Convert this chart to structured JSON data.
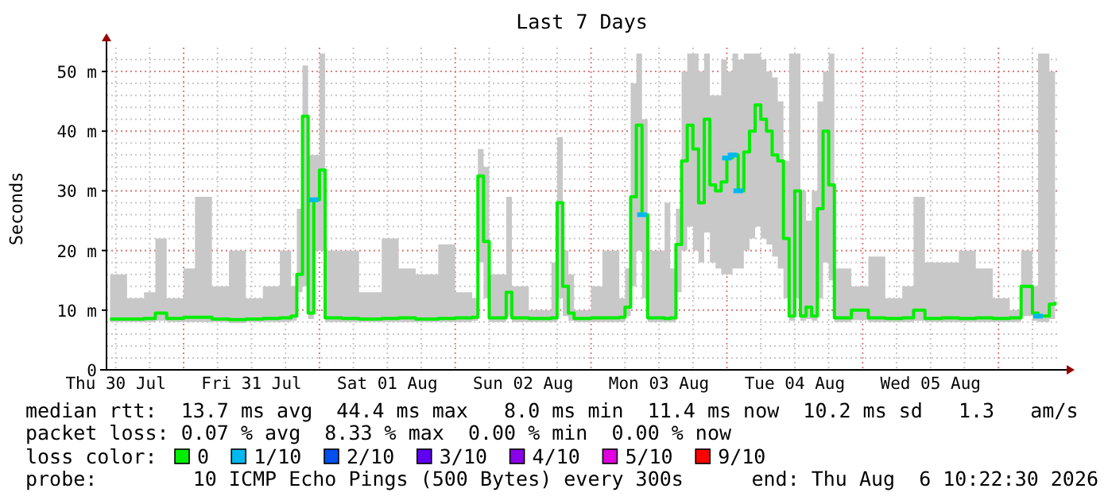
{
  "chart_data": {
    "type": "step",
    "title": "Last 7 Days",
    "ylabel": "Seconds",
    "legend_title": "loss color:",
    "legend": "bottom",
    "grid": true,
    "line_style": "solid",
    "xlim": [
      "2026-07-30T10:22",
      "2026-08-06T10:22"
    ],
    "xticks": [
      {
        "value": "2026-07-30T12:00",
        "label": "Thu 30 Jul"
      },
      {
        "value": "2026-07-31T12:00",
        "label": "Fri 31 Jul"
      },
      {
        "value": "2026-08-01T12:00",
        "label": "Sat 01 Aug"
      },
      {
        "value": "2026-08-02T12:00",
        "label": "Sun 02 Aug"
      },
      {
        "value": "2026-08-03T12:00",
        "label": "Mon 03 Aug"
      },
      {
        "value": "2026-08-04T12:00",
        "label": "Tue 04 Aug"
      },
      {
        "value": "2026-08-05T12:00",
        "label": "Wed 05 Aug"
      }
    ],
    "ylim": [
      0,
      54
    ],
    "yticks": [
      0,
      {
        "value": 10,
        "label": "10 m"
      },
      {
        "value": 20,
        "label": "20 m"
      },
      {
        "value": 30,
        "label": "30 m"
      },
      {
        "value": 40,
        "label": "40 m"
      },
      {
        "value": 50,
        "label": "50 m"
      }
    ],
    "x": [
      "2026-07-30T11:00",
      "2026-07-30T14:00",
      "2026-07-30T17:00",
      "2026-07-30T19:00",
      "2026-07-30T21:00",
      "2026-07-31T00:00",
      "2026-07-31T02:00",
      "2026-07-31T05:00",
      "2026-07-31T08:00",
      "2026-07-31T11:00",
      "2026-07-31T14:00",
      "2026-07-31T17:00",
      "2026-07-31T19:00",
      "2026-07-31T20:00",
      "2026-07-31T21:00",
      "2026-07-31T22:00",
      "2026-07-31T23:00",
      "2026-08-01T00:00",
      "2026-08-01T01:00",
      "2026-08-01T04:00",
      "2026-08-01T07:00",
      "2026-08-01T11:00",
      "2026-08-01T14:00",
      "2026-08-01T17:00",
      "2026-08-01T21:00",
      "2026-08-02T00:00",
      "2026-08-02T03:00",
      "2026-08-02T04:00",
      "2026-08-02T05:00",
      "2026-08-02T06:00",
      "2026-08-02T09:00",
      "2026-08-02T10:00",
      "2026-08-02T13:00",
      "2026-08-02T17:00",
      "2026-08-02T18:00",
      "2026-08-02T19:00",
      "2026-08-02T20:00",
      "2026-08-02T21:00",
      "2026-08-03T00:00",
      "2026-08-03T02:00",
      "2026-08-03T05:00",
      "2026-08-03T06:00",
      "2026-08-03T07:00",
      "2026-08-03T08:00",
      "2026-08-03T09:00",
      "2026-08-03T10:00",
      "2026-08-03T13:00",
      "2026-08-03T14:00",
      "2026-08-03T15:00",
      "2026-08-03T16:00",
      "2026-08-03T17:00",
      "2026-08-03T18:00",
      "2026-08-03T19:00",
      "2026-08-03T20:00",
      "2026-08-03T21:00",
      "2026-08-03T22:00",
      "2026-08-03T23:00",
      "2026-08-04T00:00",
      "2026-08-04T01:00",
      "2026-08-04T02:00",
      "2026-08-04T03:00",
      "2026-08-04T04:00",
      "2026-08-04T05:00",
      "2026-08-04T06:00",
      "2026-08-04T07:00",
      "2026-08-04T08:00",
      "2026-08-04T09:00",
      "2026-08-04T10:00",
      "2026-08-04T11:00",
      "2026-08-04T12:00",
      "2026-08-04T13:00",
      "2026-08-04T14:00",
      "2026-08-04T15:00",
      "2026-08-04T16:00",
      "2026-08-04T17:00",
      "2026-08-04T18:00",
      "2026-08-04T19:00",
      "2026-08-04T22:00",
      "2026-08-05T01:00",
      "2026-08-05T04:00",
      "2026-08-05T07:00",
      "2026-08-05T09:00",
      "2026-08-05T11:00",
      "2026-08-05T14:00",
      "2026-08-05T17:00",
      "2026-08-05T20:00",
      "2026-08-05T23:00",
      "2026-08-06T02:00",
      "2026-08-06T04:00",
      "2026-08-06T06:00",
      "2026-08-06T07:00",
      "2026-08-06T09:00",
      "2026-08-06T10:00"
    ],
    "series": [
      {
        "name": "0",
        "color": "#00ee00",
        "values": [
          8.5,
          8.5,
          8.6,
          9.5,
          8.6,
          8.8,
          8.8,
          8.5,
          8.4,
          8.5,
          8.6,
          8.7,
          9,
          16,
          42.5,
          9.5,
          28.5,
          33.5,
          8.7,
          8.6,
          8.5,
          8.6,
          8.7,
          8.5,
          8.6,
          8.7,
          8.8,
          32.5,
          21.5,
          8.7,
          13,
          8.7,
          8.6,
          8.7,
          28,
          14,
          9.5,
          8.6,
          8.7,
          8.7,
          8.8,
          10.5,
          29,
          41,
          26,
          8.7,
          8.6,
          8.7,
          21,
          35,
          41,
          37,
          28,
          42,
          31,
          30,
          31.5,
          35.5,
          36,
          30,
          36.5,
          40,
          44.4,
          42,
          40,
          36,
          35,
          22,
          9,
          30,
          9,
          10.5,
          9,
          27,
          40,
          31,
          8.7,
          10,
          8.7,
          8.6,
          8.7,
          10,
          8.6,
          8.7,
          8.6,
          8.7,
          8.6,
          8.7,
          14,
          9.5,
          9,
          11,
          11.4
        ],
        "lower": [
          8,
          8,
          8,
          8.2,
          8,
          8,
          8,
          8,
          7.8,
          8,
          8,
          8,
          8.2,
          13,
          14,
          8.5,
          20,
          20,
          8,
          8,
          8,
          8,
          8,
          8,
          8,
          8,
          8.2,
          18,
          12,
          8,
          9,
          8,
          8,
          8,
          12,
          9,
          8.2,
          8,
          8,
          8,
          8,
          9,
          14,
          20,
          12,
          8,
          8,
          8,
          13,
          20,
          24,
          20,
          18,
          23,
          18,
          17,
          16,
          16,
          17,
          17,
          20,
          22,
          24,
          22,
          21,
          19,
          17,
          12,
          8.2,
          12,
          8.2,
          8.5,
          8.2,
          12,
          18,
          15,
          8,
          8.3,
          8,
          8,
          8,
          8.2,
          8,
          8,
          8,
          8,
          8,
          8,
          9,
          8.2,
          8,
          8.5,
          9
        ],
        "upper": [
          16,
          12,
          13,
          22,
          12,
          17,
          29,
          14,
          20,
          12,
          14,
          20,
          14,
          27,
          51,
          36,
          36,
          53,
          20,
          20,
          13,
          22,
          17,
          16,
          21,
          13,
          12,
          37,
          34,
          16,
          29,
          14,
          10,
          18,
          39,
          20,
          16,
          10,
          14,
          20,
          12,
          17,
          48,
          53,
          42,
          20,
          28,
          17,
          27,
          50,
          53,
          53,
          50,
          53,
          46,
          46,
          52,
          50,
          53,
          52,
          53,
          53,
          53,
          52,
          50,
          49,
          45,
          35,
          53,
          53,
          30,
          25,
          30,
          45,
          50,
          53,
          17,
          14,
          19,
          12,
          14,
          29,
          18,
          18,
          20,
          17,
          12,
          10,
          20,
          14,
          53,
          50,
          50
        ]
      },
      {
        "name": "1/10",
        "type": "scatter",
        "color": "#00b8f0",
        "x": [
          "2026-07-31T23:00",
          "2026-08-03T09:00",
          "2026-08-04T00:00",
          "2026-08-04T01:00",
          "2026-08-04T02:00",
          "2026-08-06T07:00"
        ],
        "values": [
          28.5,
          26,
          35.5,
          36,
          30,
          9
        ]
      },
      {
        "name": "2/10",
        "type": "scatter",
        "color": "#0050f0",
        "values": [
          null,
          null,
          null,
          null,
          null,
          null,
          null,
          null,
          null,
          null,
          null,
          null,
          null,
          null,
          null,
          null,
          null,
          null,
          null,
          null,
          null,
          null,
          null,
          null,
          null,
          null,
          null,
          null,
          null,
          null,
          null,
          null,
          null,
          null,
          null,
          null,
          null,
          null,
          null,
          null,
          null,
          null,
          null,
          null,
          null,
          null,
          null,
          null,
          null,
          null,
          null,
          null,
          null,
          null,
          null,
          null,
          null,
          null,
          null,
          null,
          null,
          null,
          null,
          null,
          null,
          null,
          null,
          null,
          null,
          null,
          null,
          null,
          null,
          null,
          null,
          null,
          null,
          null,
          null,
          null,
          null,
          null,
          null,
          null,
          null,
          null,
          null,
          null,
          null,
          null,
          null,
          null,
          null
        ]
      },
      {
        "name": "3/10",
        "type": "scatter",
        "color": "#6000f0",
        "values": [
          null,
          null,
          null,
          null,
          null,
          null,
          null,
          null,
          null,
          null,
          null,
          null,
          null,
          null,
          null,
          null,
          null,
          null,
          null,
          null,
          null,
          null,
          null,
          null,
          null,
          null,
          null,
          null,
          null,
          null,
          null,
          null,
          null,
          null,
          null,
          null,
          null,
          null,
          null,
          null,
          null,
          null,
          null,
          null,
          null,
          null,
          null,
          null,
          null,
          null,
          null,
          null,
          null,
          null,
          null,
          null,
          null,
          null,
          null,
          null,
          null,
          null,
          null,
          null,
          null,
          null,
          null,
          null,
          null,
          null,
          null,
          null,
          null,
          null,
          null,
          null,
          null,
          null,
          null,
          null,
          null,
          null,
          null,
          null,
          null,
          null,
          null,
          null,
          null,
          null,
          null,
          null,
          null
        ]
      },
      {
        "name": "4/10",
        "type": "scatter",
        "color": "#8a00e8",
        "values": [
          null,
          null,
          null,
          null,
          null,
          null,
          null,
          null,
          null,
          null,
          null,
          null,
          null,
          null,
          null,
          null,
          null,
          null,
          null,
          null,
          null,
          null,
          null,
          null,
          null,
          null,
          null,
          null,
          null,
          null,
          null,
          null,
          null,
          null,
          null,
          null,
          null,
          null,
          null,
          null,
          null,
          null,
          null,
          null,
          null,
          null,
          null,
          null,
          null,
          null,
          null,
          null,
          null,
          null,
          null,
          null,
          null,
          null,
          null,
          null,
          null,
          null,
          null,
          null,
          null,
          null,
          null,
          null,
          null,
          null,
          null,
          null,
          null,
          null,
          null,
          null,
          null,
          null,
          null,
          null,
          null,
          null,
          null,
          null,
          null,
          null,
          null,
          null,
          null,
          null,
          null,
          null,
          null
        ]
      },
      {
        "name": "5/10",
        "type": "scatter",
        "color": "#e000e0",
        "values": [
          null,
          null,
          null,
          null,
          null,
          null,
          null,
          null,
          null,
          null,
          null,
          null,
          null,
          null,
          null,
          null,
          null,
          null,
          null,
          null,
          null,
          null,
          null,
          null,
          null,
          null,
          null,
          null,
          null,
          null,
          null,
          null,
          null,
          null,
          null,
          null,
          null,
          null,
          null,
          null,
          null,
          null,
          null,
          null,
          null,
          null,
          null,
          null,
          null,
          null,
          null,
          null,
          null,
          null,
          null,
          null,
          null,
          null,
          null,
          null,
          null,
          null,
          null,
          null,
          null,
          null,
          null,
          null,
          null,
          null,
          null,
          null,
          null,
          null,
          null,
          null,
          null,
          null,
          null,
          null,
          null,
          null,
          null,
          null,
          null,
          null,
          null,
          null,
          null,
          null,
          null,
          null,
          null
        ]
      },
      {
        "name": "9/10",
        "type": "scatter",
        "color": "#ff0000",
        "values": [
          null,
          null,
          null,
          null,
          null,
          null,
          null,
          null,
          null,
          null,
          null,
          null,
          null,
          null,
          null,
          null,
          null,
          null,
          null,
          null,
          null,
          null,
          null,
          null,
          null,
          null,
          null,
          null,
          null,
          null,
          null,
          null,
          null,
          null,
          null,
          null,
          null,
          null,
          null,
          null,
          null,
          null,
          null,
          null,
          null,
          null,
          null,
          null,
          null,
          null,
          null,
          null,
          null,
          null,
          null,
          null,
          null,
          null,
          null,
          null,
          null,
          null,
          null,
          null,
          null,
          null,
          null,
          null,
          null,
          null,
          null,
          null,
          null,
          null,
          null,
          null,
          null,
          null,
          null,
          null,
          null,
          null,
          null,
          null,
          null,
          null,
          null,
          null,
          null,
          null,
          null,
          null,
          null
        ]
      }
    ],
    "annotations": [
      "median rtt:  13.7 ms avg  44.4 ms max   8.0 ms min  11.4 ms now  10.2 ms sd   1.3   am/s",
      "packet loss: 0.07 % avg  8.33 % max  0.00 % min  0.00 % now",
      "probe:        10 ICMP Echo Pings (500 Bytes) every 300s",
      "end: Thu Aug  6 10:22:30 2026"
    ]
  }
}
